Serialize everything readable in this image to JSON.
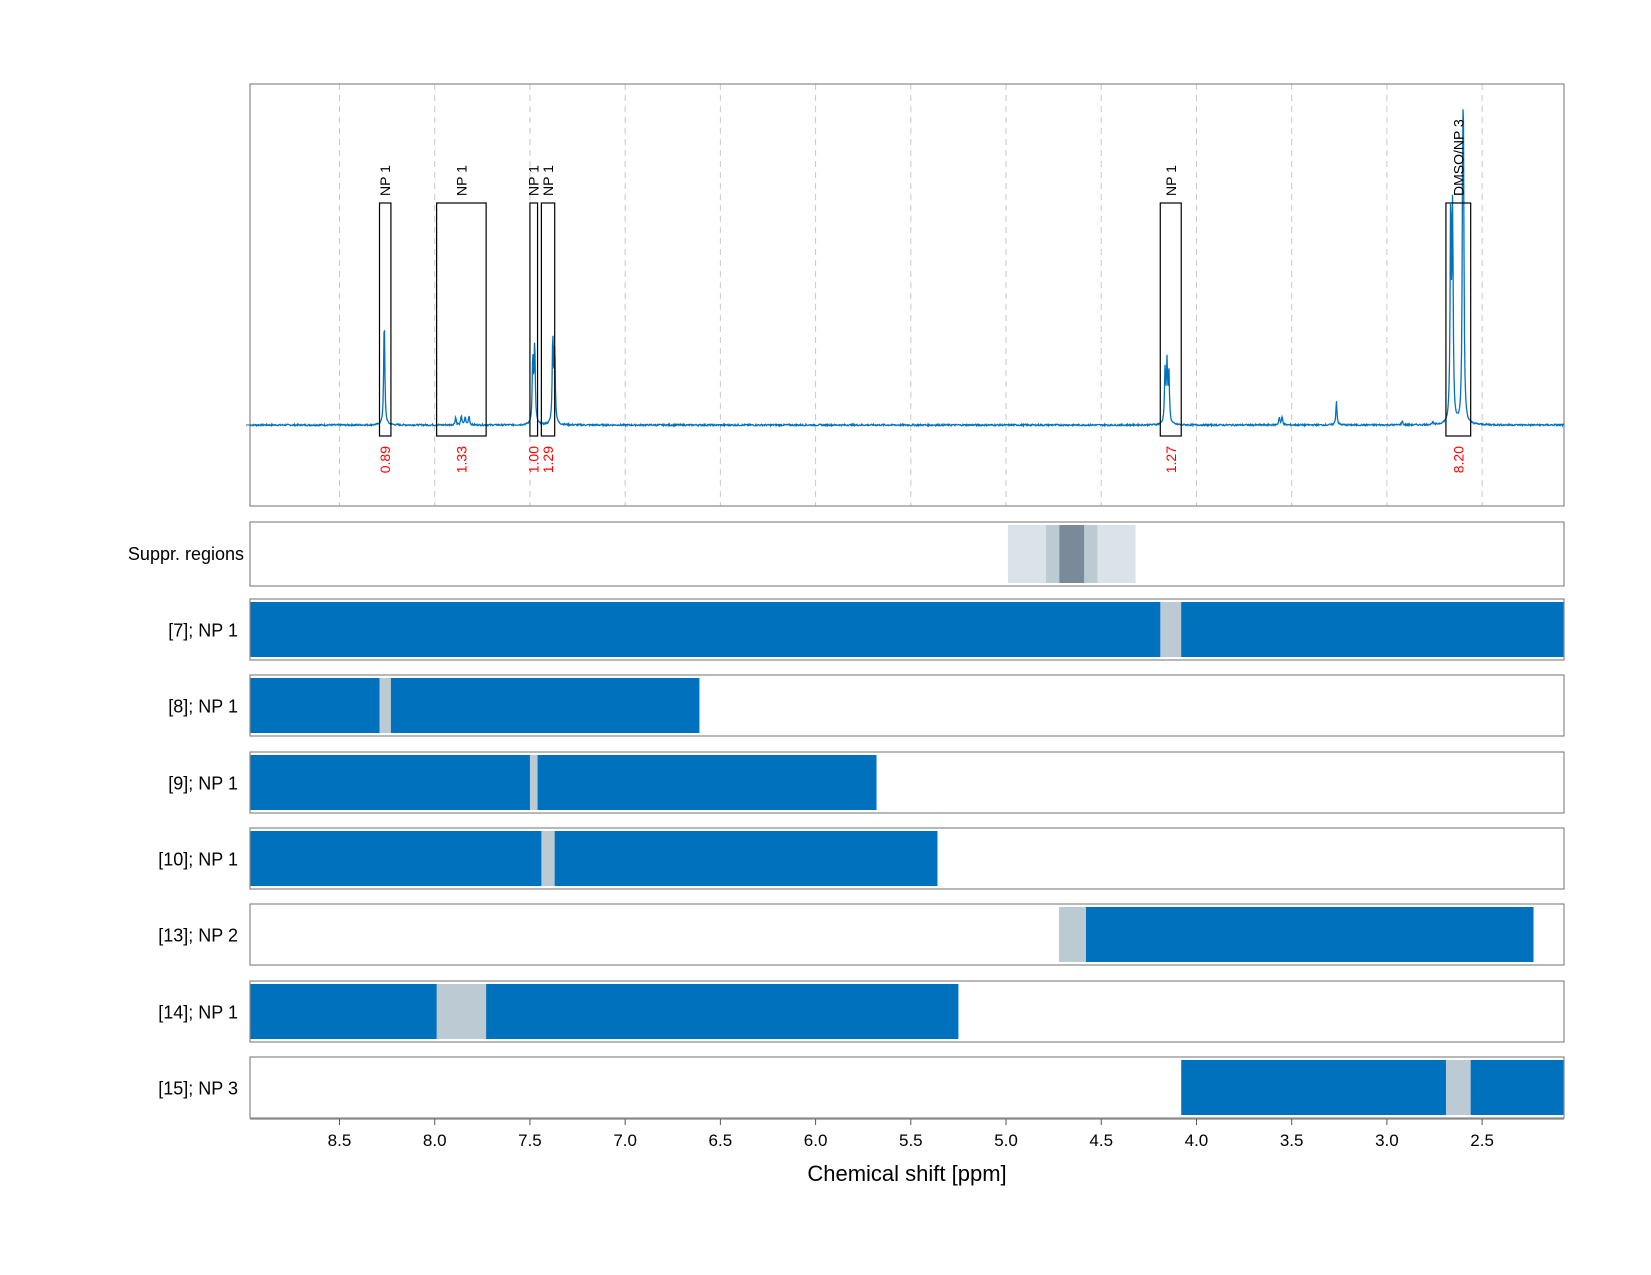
{
  "chart_data": {
    "type": "line",
    "xlabel": "Chemical shift [ppm]",
    "xlim": [
      8.97,
      2.07
    ],
    "x_ticks": [
      "8.5",
      "8.0",
      "7.5",
      "7.0",
      "6.5",
      "6.0",
      "5.5",
      "5.0",
      "4.5",
      "4.0",
      "3.5",
      "3.0",
      "2.5"
    ],
    "grid": "vertical dashed",
    "colors": {
      "spectrum": "#0072bd",
      "integral": "#ff0000",
      "bar": "#0072bd",
      "gap": "#bccbd3"
    },
    "spectrum": {
      "peaks": [
        {
          "ppm": 8.265,
          "height": 0.4
        },
        {
          "ppm": 7.89,
          "height": 0.03
        },
        {
          "ppm": 7.86,
          "height": 0.035
        },
        {
          "ppm": 7.84,
          "height": 0.03
        },
        {
          "ppm": 7.82,
          "height": 0.035
        },
        {
          "ppm": 7.485,
          "height": 0.25
        },
        {
          "ppm": 7.475,
          "height": 0.3
        },
        {
          "ppm": 7.38,
          "height": 0.33
        },
        {
          "ppm": 7.37,
          "height": 0.28
        },
        {
          "ppm": 4.165,
          "height": 0.2
        },
        {
          "ppm": 4.155,
          "height": 0.22
        },
        {
          "ppm": 4.145,
          "height": 0.2
        },
        {
          "ppm": 3.565,
          "height": 0.03
        },
        {
          "ppm": 3.55,
          "height": 0.03
        },
        {
          "ppm": 3.265,
          "height": 0.09
        },
        {
          "ppm": 2.92,
          "height": 0.015
        },
        {
          "ppm": 2.76,
          "height": 0.01
        },
        {
          "ppm": 2.665,
          "height": 0.82
        },
        {
          "ppm": 2.655,
          "height": 0.78
        },
        {
          "ppm": 2.602,
          "height": 0.73
        },
        {
          "ppm": 2.598,
          "height": 0.85
        }
      ]
    },
    "peak_regions": [
      {
        "label": "NP 1",
        "from": 8.29,
        "to": 8.23,
        "integral": "0.89"
      },
      {
        "label": "NP 1",
        "from": 7.99,
        "to": 7.73,
        "integral": "1.33"
      },
      {
        "label": "NP 1",
        "from": 7.5,
        "to": 7.46,
        "integral": "1.00"
      },
      {
        "label": "NP 1",
        "from": 7.44,
        "to": 7.37,
        "integral": "1.29"
      },
      {
        "label": "NP 1",
        "from": 4.19,
        "to": 4.08,
        "integral": "1.27"
      },
      {
        "label": "DMSO/NP 3",
        "from": 2.69,
        "to": 2.56,
        "integral": "8.20"
      }
    ],
    "suppr_regions": {
      "label": "Suppr. regions",
      "bands": [
        {
          "from": 4.99,
          "to": 4.32,
          "level": "light"
        },
        {
          "from": 4.79,
          "to": 4.52,
          "level": "medium"
        },
        {
          "from": 4.72,
          "to": 4.59,
          "level": "dark"
        }
      ]
    },
    "rows": [
      {
        "label": "[7]; NP 1",
        "from": 8.97,
        "to": 2.07,
        "gap": [
          4.19,
          4.08
        ]
      },
      {
        "label": "[8]; NP 1",
        "from": 8.97,
        "to": 6.61,
        "gap": [
          8.29,
          8.23
        ]
      },
      {
        "label": "[9]; NP 1",
        "from": 8.97,
        "to": 5.68,
        "gap": [
          7.5,
          7.46
        ]
      },
      {
        "label": "[10]; NP 1",
        "from": 8.97,
        "to": 5.36,
        "gap": [
          7.44,
          7.37
        ]
      },
      {
        "label": "[13]; NP 2",
        "from": 4.72,
        "to": 2.23,
        "gap": [
          4.72,
          4.58
        ]
      },
      {
        "label": "[14]; NP 1",
        "from": 8.97,
        "to": 5.25,
        "gap": [
          7.99,
          7.73
        ]
      },
      {
        "label": "[15]; NP 3",
        "from": 4.08,
        "to": 2.07,
        "gap": [
          2.69,
          2.56
        ]
      }
    ]
  }
}
